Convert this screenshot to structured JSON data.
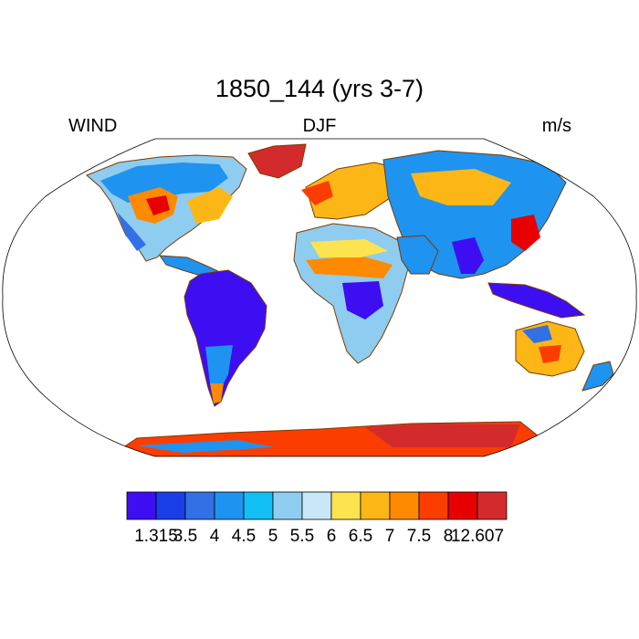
{
  "title": "1850_144 (yrs 3-7)",
  "left_string": "WIND",
  "center_string": "DJF",
  "right_string": "m/s",
  "colorbar": {
    "labels": [
      "1.315",
      "3.5",
      "4",
      "4.5",
      "5",
      "5.5",
      "6",
      "6.5",
      "7",
      "7.5",
      "8",
      "12.607"
    ],
    "colors": [
      "#3d0ef2",
      "#1a3ee8",
      "#3370e6",
      "#1f93f0",
      "#12bff4",
      "#8ecdf0",
      "#c8e8f8",
      "#fde350",
      "#fcb716",
      "#fd8a00",
      "#fc3d00",
      "#e80000",
      "#d32b2b"
    ]
  },
  "map": {
    "projection": "Robinson",
    "ocean_color": "#ffffff",
    "coastline_color": "#000000"
  }
}
